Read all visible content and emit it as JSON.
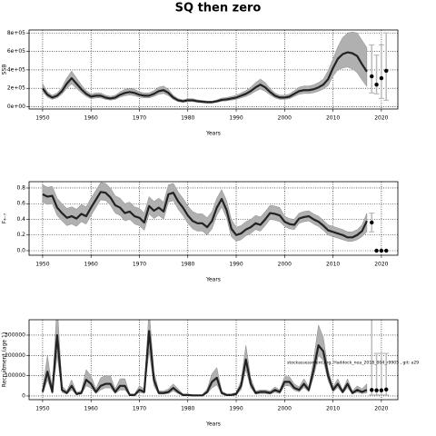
{
  "title": "SQ then zero",
  "chart_data": [
    {
      "type": "line",
      "ylabel": "SSB",
      "xlabel": "Years",
      "grid": true,
      "color": "#222222",
      "band_color": "#b0b0b0",
      "error_color": "#bbbbbb",
      "xlim": [
        1947.2,
        2023.4
      ],
      "xticks": [
        1950,
        1960,
        1970,
        1980,
        1990,
        2000,
        2010,
        2020
      ],
      "ylim": [
        -24000,
        832000
      ],
      "yticks": [
        {
          "value": 0,
          "label": "0e+00"
        },
        {
          "value": 200000,
          "label": "2e+05"
        },
        {
          "value": 400000,
          "label": "4e+05"
        },
        {
          "value": 600000,
          "label": "6e+05"
        },
        {
          "value": 800000,
          "label": "8e+05"
        }
      ],
      "x": [
        1950,
        1951,
        1952,
        1953,
        1954,
        1955,
        1956,
        1957,
        1958,
        1959,
        1960,
        1961,
        1962,
        1963,
        1964,
        1965,
        1966,
        1967,
        1968,
        1969,
        1970,
        1971,
        1972,
        1973,
        1974,
        1975,
        1976,
        1977,
        1978,
        1979,
        1980,
        1981,
        1982,
        1983,
        1984,
        1985,
        1986,
        1987,
        1988,
        1989,
        1990,
        1991,
        1992,
        1993,
        1994,
        1995,
        1996,
        1997,
        1998,
        1999,
        2000,
        2001,
        2002,
        2003,
        2004,
        2005,
        2006,
        2007,
        2008,
        2009,
        2010,
        2011,
        2012,
        2013,
        2014,
        2015,
        2016,
        2017
      ],
      "values": [
        200000,
        130000,
        100000,
        120000,
        170000,
        250000,
        310000,
        250000,
        190000,
        140000,
        110000,
        120000,
        120000,
        100000,
        90000,
        100000,
        130000,
        150000,
        160000,
        150000,
        130000,
        120000,
        120000,
        140000,
        170000,
        180000,
        150000,
        100000,
        70000,
        60000,
        70000,
        70000,
        60000,
        55000,
        50000,
        50000,
        60000,
        75000,
        80000,
        90000,
        100000,
        120000,
        140000,
        170000,
        210000,
        240000,
        210000,
        160000,
        120000,
        100000,
        100000,
        110000,
        140000,
        170000,
        180000,
        180000,
        190000,
        210000,
        240000,
        300000,
        420000,
        520000,
        570000,
        590000,
        580000,
        550000,
        460000,
        380000
      ],
      "lower": [
        160000,
        104000,
        80000,
        96000,
        136000,
        200000,
        248000,
        200000,
        152000,
        112000,
        88000,
        96000,
        96000,
        80000,
        72000,
        80000,
        104000,
        120000,
        128000,
        120000,
        104000,
        96000,
        96000,
        112000,
        136000,
        144000,
        120000,
        80000,
        56000,
        48000,
        56000,
        56000,
        48000,
        44000,
        40000,
        40000,
        48000,
        60000,
        64000,
        72000,
        80000,
        96000,
        112000,
        136000,
        168000,
        192000,
        168000,
        128000,
        96000,
        80000,
        80000,
        88000,
        112000,
        136000,
        144000,
        144000,
        152000,
        168000,
        192000,
        230000,
        330000,
        400000,
        420000,
        430000,
        410000,
        370000,
        290000,
        220000
      ],
      "upper": [
        250000,
        162000,
        125000,
        150000,
        212000,
        312000,
        388000,
        312000,
        238000,
        175000,
        138000,
        150000,
        150000,
        125000,
        112000,
        125000,
        162000,
        188000,
        200000,
        188000,
        162000,
        150000,
        150000,
        175000,
        212000,
        225000,
        188000,
        125000,
        88000,
        75000,
        88000,
        88000,
        75000,
        69000,
        62000,
        62000,
        75000,
        94000,
        100000,
        112000,
        125000,
        150000,
        175000,
        212000,
        262000,
        300000,
        262000,
        200000,
        150000,
        125000,
        125000,
        138000,
        175000,
        212000,
        225000,
        225000,
        238000,
        262000,
        300000,
        390000,
        520000,
        650000,
        750000,
        800000,
        810000,
        800000,
        720000,
        640000
      ],
      "forecast": {
        "x": [
          2018,
          2019,
          2020,
          2021
        ],
        "values": [
          330000,
          240000,
          310000,
          390000
        ],
        "lower": [
          150000,
          140000,
          90000,
          70000
        ],
        "upper": [
          670000,
          560000,
          670000,
          800000
        ]
      }
    },
    {
      "type": "line",
      "ylabel": "F₄₋₇",
      "xlabel": "Years",
      "grid": true,
      "color": "#222222",
      "band_color": "#b0b0b0",
      "error_color": "#bbbbbb",
      "xlim": [
        1947.2,
        2023.4
      ],
      "xticks": [
        1950,
        1960,
        1970,
        1980,
        1990,
        2000,
        2010,
        2020
      ],
      "ylim": [
        -0.058,
        0.881
      ],
      "yticks": [
        {
          "value": 0,
          "label": "0.0"
        },
        0.2,
        0.4,
        0.6,
        0.8
      ],
      "x": [
        1950,
        1951,
        1952,
        1953,
        1954,
        1955,
        1956,
        1957,
        1958,
        1959,
        1960,
        1961,
        1962,
        1963,
        1964,
        1965,
        1966,
        1967,
        1968,
        1969,
        1970,
        1971,
        1972,
        1973,
        1974,
        1975,
        1976,
        1977,
        1978,
        1979,
        1980,
        1981,
        1982,
        1983,
        1984,
        1985,
        1986,
        1987,
        1988,
        1989,
        1990,
        1991,
        1992,
        1993,
        1994,
        1995,
        1996,
        1997,
        1998,
        1999,
        2000,
        2001,
        2002,
        2003,
        2004,
        2005,
        2006,
        2007,
        2008,
        2009,
        2010,
        2011,
        2012,
        2013,
        2014,
        2015,
        2016,
        2017
      ],
      "values": [
        0.72,
        0.69,
        0.7,
        0.55,
        0.48,
        0.42,
        0.44,
        0.41,
        0.47,
        0.44,
        0.55,
        0.65,
        0.75,
        0.74,
        0.68,
        0.58,
        0.55,
        0.48,
        0.5,
        0.44,
        0.42,
        0.36,
        0.57,
        0.51,
        0.55,
        0.5,
        0.72,
        0.74,
        0.63,
        0.55,
        0.45,
        0.38,
        0.35,
        0.35,
        0.3,
        0.38,
        0.55,
        0.66,
        0.52,
        0.28,
        0.2,
        0.22,
        0.27,
        0.3,
        0.35,
        0.33,
        0.4,
        0.48,
        0.47,
        0.45,
        0.37,
        0.34,
        0.33,
        0.41,
        0.43,
        0.44,
        0.4,
        0.37,
        0.32,
        0.26,
        0.24,
        0.22,
        0.2,
        0.17,
        0.17,
        0.2,
        0.25,
        0.38
      ],
      "lower": [
        0.62,
        0.59,
        0.6,
        0.45,
        0.38,
        0.32,
        0.34,
        0.31,
        0.37,
        0.34,
        0.45,
        0.55,
        0.65,
        0.64,
        0.58,
        0.48,
        0.45,
        0.38,
        0.4,
        0.34,
        0.32,
        0.26,
        0.47,
        0.41,
        0.45,
        0.4,
        0.62,
        0.64,
        0.53,
        0.45,
        0.35,
        0.28,
        0.25,
        0.25,
        0.2,
        0.28,
        0.45,
        0.56,
        0.42,
        0.18,
        0.12,
        0.14,
        0.19,
        0.22,
        0.27,
        0.25,
        0.32,
        0.4,
        0.39,
        0.37,
        0.31,
        0.28,
        0.27,
        0.35,
        0.37,
        0.38,
        0.34,
        0.31,
        0.26,
        0.2,
        0.18,
        0.16,
        0.14,
        0.12,
        0.12,
        0.14,
        0.18,
        0.24
      ],
      "upper": [
        0.84,
        0.81,
        0.82,
        0.67,
        0.6,
        0.54,
        0.56,
        0.53,
        0.59,
        0.56,
        0.67,
        0.77,
        0.87,
        0.86,
        0.8,
        0.7,
        0.67,
        0.6,
        0.62,
        0.56,
        0.54,
        0.48,
        0.69,
        0.63,
        0.67,
        0.62,
        0.84,
        0.86,
        0.75,
        0.67,
        0.57,
        0.5,
        0.47,
        0.47,
        0.42,
        0.5,
        0.67,
        0.78,
        0.64,
        0.4,
        0.3,
        0.32,
        0.37,
        0.4,
        0.45,
        0.43,
        0.5,
        0.58,
        0.57,
        0.55,
        0.44,
        0.41,
        0.4,
        0.48,
        0.5,
        0.51,
        0.47,
        0.44,
        0.39,
        0.33,
        0.31,
        0.29,
        0.27,
        0.24,
        0.24,
        0.27,
        0.33,
        0.48
      ],
      "forecast": {
        "x": [
          2018,
          2019,
          2020,
          2021
        ],
        "values": [
          0.36,
          0,
          0,
          0
        ],
        "lower": [
          0.24,
          0,
          0,
          0
        ],
        "upper": [
          0.48,
          0,
          0,
          0
        ]
      }
    },
    {
      "type": "line",
      "ylabel": "Recruitment (age 1)",
      "xlabel": "Years",
      "grid": true,
      "color": "#222222",
      "band_color": "#b0b0b0",
      "error_color": "#bbbbbb",
      "annotation": "stockassessment.org, Haddock_nea_2018_004_r9905 , git: a29",
      "xlim": [
        1947.2,
        2023.4
      ],
      "xticks": [
        1950,
        1960,
        1970,
        1980,
        1990,
        2000,
        2010,
        2020
      ],
      "ylim": [
        -18000,
        376000
      ],
      "yticks": [
        0,
        100000,
        200000,
        300000
      ],
      "x": [
        1950,
        1951,
        1952,
        1953,
        1954,
        1955,
        1956,
        1957,
        1958,
        1959,
        1960,
        1961,
        1962,
        1963,
        1964,
        1965,
        1966,
        1967,
        1968,
        1969,
        1970,
        1971,
        1972,
        1973,
        1974,
        1975,
        1976,
        1977,
        1978,
        1979,
        1980,
        1981,
        1982,
        1983,
        1984,
        1985,
        1986,
        1987,
        1988,
        1989,
        1990,
        1991,
        1992,
        1993,
        1994,
        1995,
        1996,
        1997,
        1998,
        1999,
        2000,
        2001,
        2002,
        2003,
        2004,
        2005,
        2006,
        2007,
        2008,
        2009,
        2010,
        2011,
        2012,
        2013,
        2014,
        2015,
        2016,
        2017
      ],
      "values": [
        20000,
        120000,
        20000,
        300000,
        30000,
        15000,
        50000,
        10000,
        15000,
        80000,
        60000,
        20000,
        50000,
        60000,
        60000,
        20000,
        50000,
        50000,
        5000,
        5000,
        30000,
        20000,
        320000,
        80000,
        15000,
        15000,
        20000,
        40000,
        20000,
        5000,
        5000,
        3000,
        3000,
        3000,
        20000,
        70000,
        90000,
        15000,
        5000,
        5000,
        10000,
        50000,
        180000,
        60000,
        15000,
        20000,
        20000,
        15000,
        30000,
        20000,
        70000,
        70000,
        40000,
        30000,
        60000,
        30000,
        130000,
        250000,
        220000,
        100000,
        30000,
        60000,
        20000,
        60000,
        15000,
        30000,
        20000,
        30000
      ],
      "lower": [
        12000,
        80000,
        12000,
        200000,
        18000,
        9000,
        30000,
        6000,
        9000,
        50000,
        40000,
        12000,
        30000,
        40000,
        40000,
        12000,
        30000,
        30000,
        3000,
        3000,
        18000,
        12000,
        220000,
        50000,
        9000,
        9000,
        12000,
        25000,
        12000,
        3000,
        3000,
        2000,
        2000,
        2000,
        12000,
        40000,
        55000,
        9000,
        3000,
        3000,
        6000,
        30000,
        130000,
        40000,
        9000,
        12000,
        12000,
        9000,
        18000,
        12000,
        50000,
        50000,
        28000,
        20000,
        42000,
        20000,
        95000,
        200000,
        175000,
        75000,
        20000,
        42000,
        13000,
        40000,
        10000,
        18000,
        12000,
        15000
      ],
      "upper": [
        35000,
        200000,
        35000,
        460000,
        50000,
        25000,
        80000,
        18000,
        25000,
        130000,
        100000,
        35000,
        90000,
        100000,
        100000,
        35000,
        85000,
        85000,
        10000,
        10000,
        50000,
        35000,
        430000,
        120000,
        25000,
        25000,
        35000,
        60000,
        35000,
        10000,
        10000,
        6000,
        6000,
        6000,
        35000,
        110000,
        140000,
        25000,
        10000,
        10000,
        18000,
        75000,
        250000,
        90000,
        25000,
        30000,
        30000,
        25000,
        45000,
        30000,
        95000,
        95000,
        60000,
        45000,
        85000,
        45000,
        180000,
        350000,
        290000,
        130000,
        45000,
        85000,
        30000,
        85000,
        25000,
        50000,
        35000,
        60000
      ],
      "forecast": {
        "x": [
          2018,
          2019,
          2020,
          2021
        ],
        "values": [
          30000,
          28000,
          28000,
          32000
        ],
        "lower": [
          5000,
          5000,
          5000,
          5000
        ],
        "upper": [
          380000,
          210000,
          210000,
          210000
        ]
      }
    }
  ]
}
